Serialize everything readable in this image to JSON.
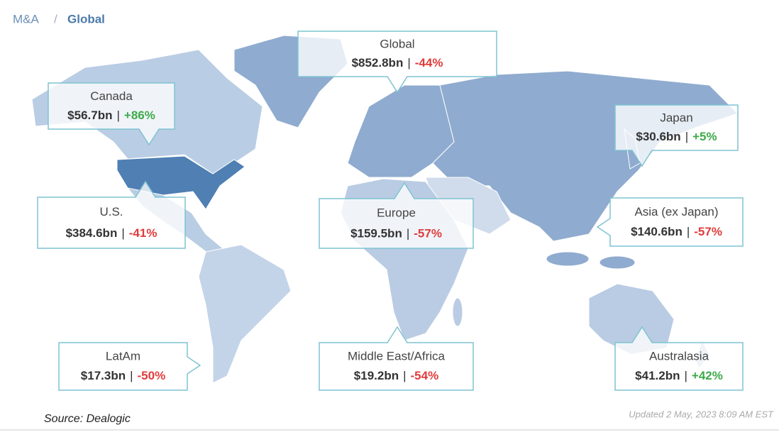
{
  "breadcrumb": {
    "parent": "M&A",
    "separator": "/",
    "current": "Global"
  },
  "separator": "|",
  "regions": [
    {
      "name": "Global",
      "value_label": "$852.8bn",
      "change_label": "-44%"
    },
    {
      "name": "Canada",
      "value_label": "$56.7bn",
      "change_label": "+86%"
    },
    {
      "name": "Japan",
      "value_label": "$30.6bn",
      "change_label": "+5%"
    },
    {
      "name": "U.S.",
      "value_label": "$384.6bn",
      "change_label": "-41%"
    },
    {
      "name": "Europe",
      "value_label": "$159.5bn",
      "change_label": "-57%"
    },
    {
      "name": "Asia (ex Japan)",
      "value_label": "$140.6bn",
      "change_label": "-57%"
    },
    {
      "name": "LatAm",
      "value_label": "$17.3bn",
      "change_label": "-50%"
    },
    {
      "name": "Middle East/Africa",
      "value_label": "$19.2bn",
      "change_label": "-54%"
    },
    {
      "name": "Australasia",
      "value_label": "$41.2bn",
      "change_label": "+42%"
    }
  ],
  "footer": {
    "source": "Source: Dealogic",
    "updated": "Updated 2 May, 2023 8:09 AM EST"
  }
}
